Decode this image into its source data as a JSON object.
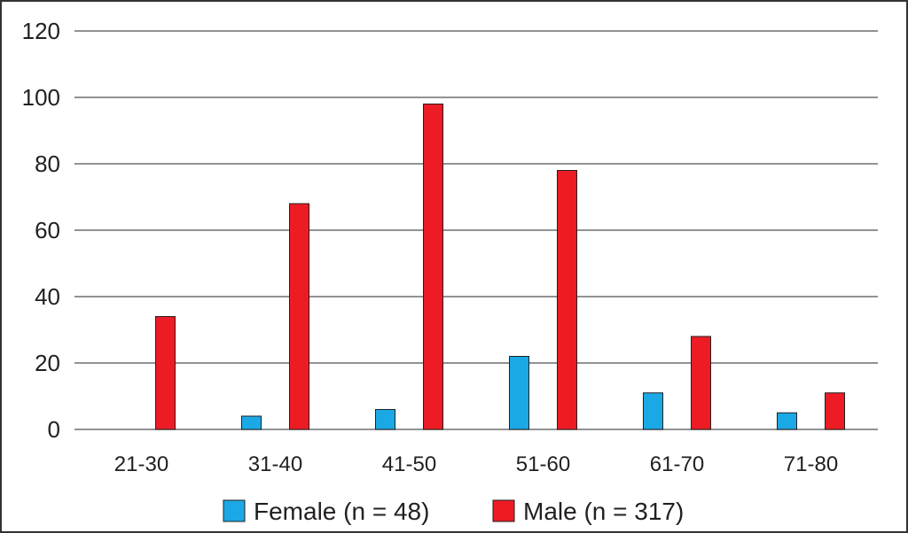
{
  "chart_data": {
    "type": "bar",
    "categories": [
      "21-30",
      "31-40",
      "41-50",
      "51-60",
      "61-70",
      "71-80"
    ],
    "series": [
      {
        "name": "Female (n = 48)",
        "values": [
          0,
          4,
          6,
          22,
          11,
          5
        ],
        "color": "#1ba9e6"
      },
      {
        "name": "Male (n = 317)",
        "values": [
          34,
          68,
          98,
          78,
          28,
          11
        ],
        "color": "#ed1c24"
      }
    ],
    "title": "",
    "xlabel": "",
    "ylabel": "",
    "ylim": [
      0,
      120
    ],
    "yticks": [
      0,
      20,
      40,
      60,
      80,
      100,
      120
    ],
    "grid": true,
    "legend_position": "bottom"
  }
}
